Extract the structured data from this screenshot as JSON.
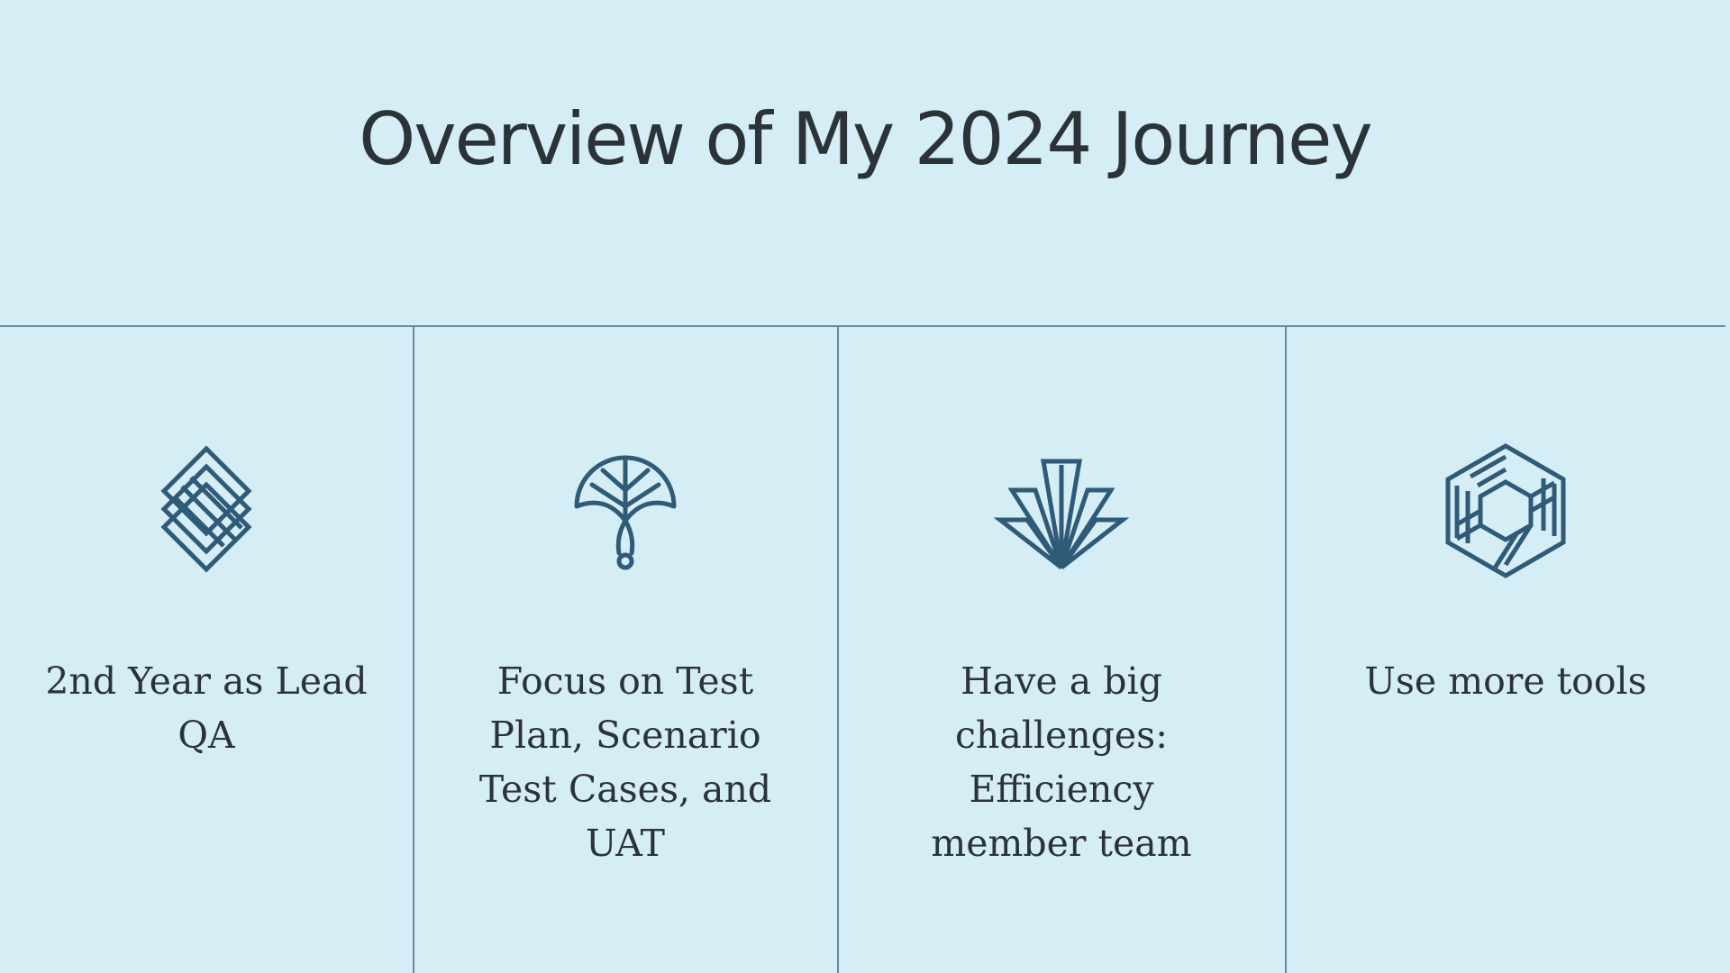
{
  "slide": {
    "title": "Overview of My 2024 Journey",
    "colors": {
      "background": "#d5edf4",
      "text": "#2b3338",
      "icon": "#2f5a78",
      "divider": "#6d8798"
    }
  },
  "columns": [
    {
      "icon": "stacked-diamonds-icon",
      "label": "2nd Year as Lead QA"
    },
    {
      "icon": "ginkgo-leaf-icon",
      "label": "Focus on Test Plan, Scenario Test Cases, and UAT"
    },
    {
      "icon": "art-deco-fan-icon",
      "label": "Have a big challenges: Efficiency member team"
    },
    {
      "icon": "woven-hexagon-icon",
      "label": "Use more tools"
    }
  ]
}
